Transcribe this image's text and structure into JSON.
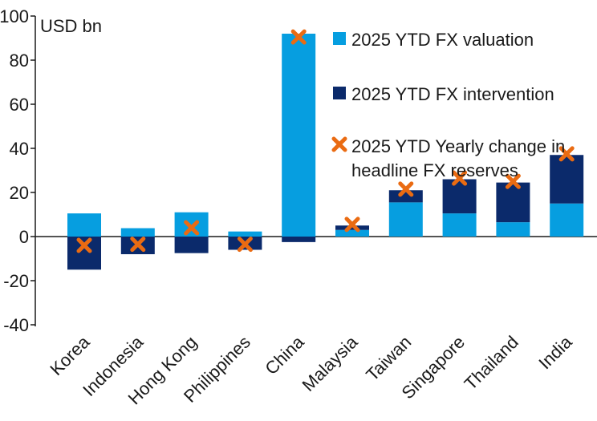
{
  "chart_data": {
    "type": "bar",
    "stacked": true,
    "unit_label": "USD bn",
    "categories": [
      "Korea",
      "Indonesia",
      "Hong Kong",
      "Philippines",
      "China",
      "Malaysia",
      "Taiwan",
      "Singapore",
      "Thailand",
      "India"
    ],
    "series": [
      {
        "name": "2025 YTD FX valuation",
        "kind": "bar",
        "color": "#069ee0",
        "values": [
          10.5,
          3.8,
          11,
          2.3,
          92,
          3,
          15.5,
          10.5,
          6.5,
          15
        ]
      },
      {
        "name": "2025 YTD FX intervention",
        "kind": "bar",
        "color": "#0b2a6b",
        "values": [
          -15,
          -8,
          -7.5,
          -6,
          -2.5,
          2,
          5.5,
          15.5,
          18,
          22
        ]
      },
      {
        "name_lines": [
          "2025 YTD Yearly change in",
          "headline FX reserves"
        ],
        "kind": "marker",
        "marker": "x-icon",
        "color": "#ea6b12",
        "values": [
          -4,
          -3.5,
          4,
          -3.5,
          90.5,
          5.5,
          21.5,
          26.5,
          25,
          37.5
        ]
      }
    ],
    "ylim": [
      -40,
      100
    ],
    "yticks": [
      "100",
      "80",
      "60",
      "40",
      "20",
      "0",
      "-20",
      "-40"
    ],
    "ytick_values": [
      100,
      80,
      60,
      40,
      20,
      0,
      -20,
      -40
    ],
    "grid": false,
    "legend_position": "top-right"
  }
}
